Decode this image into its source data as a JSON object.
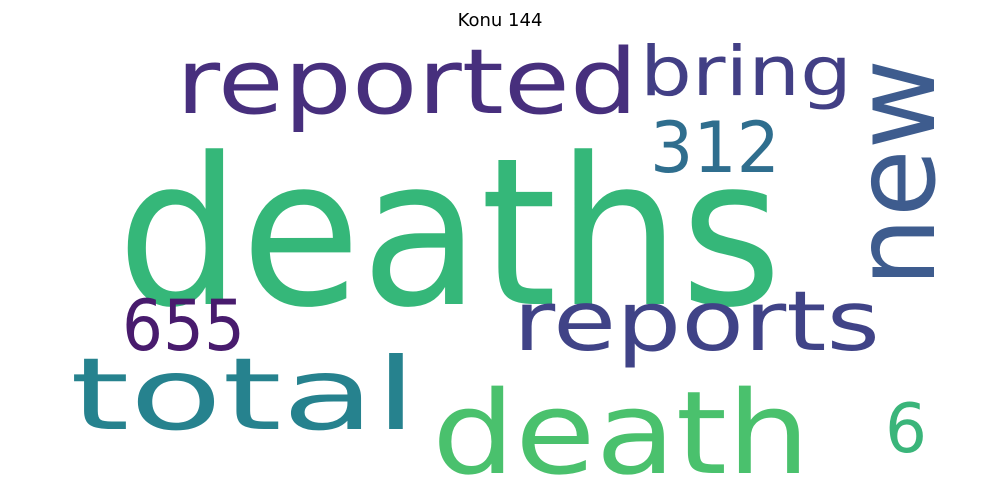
{
  "title": "Konu 144",
  "words": [
    {
      "text": "deaths",
      "color": "#35b779"
    },
    {
      "text": "new",
      "color": "#3e5c8e"
    },
    {
      "text": "reported",
      "color": "#472f7d"
    },
    {
      "text": "bring",
      "color": "#423f85"
    },
    {
      "text": "312",
      "color": "#2f6e8e"
    },
    {
      "text": "reports",
      "color": "#404387"
    },
    {
      "text": "655",
      "color": "#481b6d"
    },
    {
      "text": "total",
      "color": "#26828e"
    },
    {
      "text": "death",
      "color": "#4ac16d"
    },
    {
      "text": "6",
      "color": "#3ab57a"
    }
  ]
}
